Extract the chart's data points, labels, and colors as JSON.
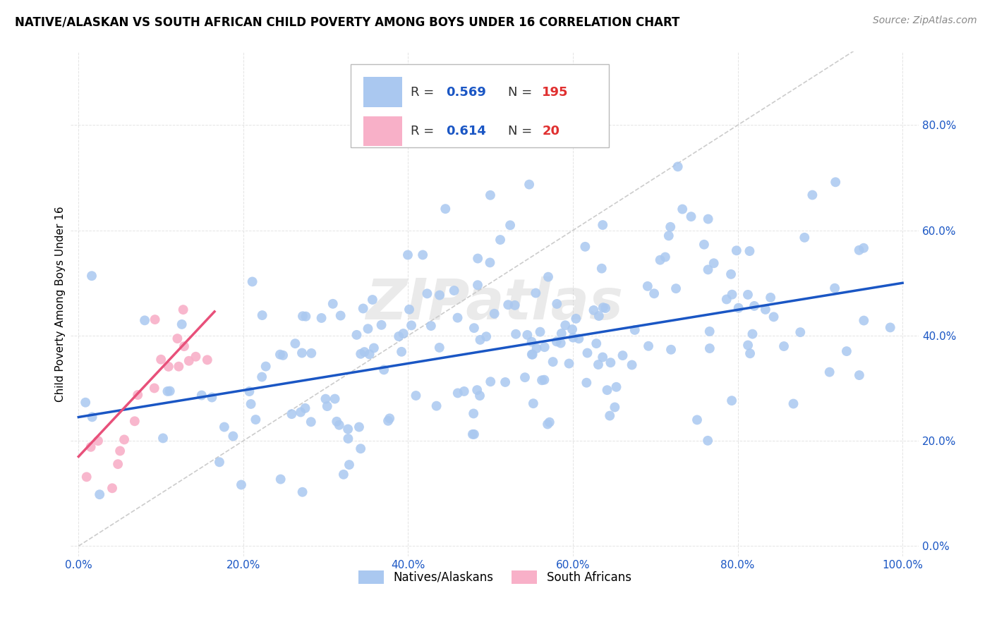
{
  "title": "NATIVE/ALASKAN VS SOUTH AFRICAN CHILD POVERTY AMONG BOYS UNDER 16 CORRELATION CHART",
  "source": "Source: ZipAtlas.com",
  "ylabel": "Child Poverty Among Boys Under 16",
  "blue_R": "0.569",
  "blue_N": "195",
  "pink_R": "0.614",
  "pink_N": "20",
  "blue_color": "#aac8f0",
  "blue_line_color": "#1a56c4",
  "pink_color": "#f8b0c8",
  "pink_line_color": "#e8507a",
  "dashed_line_color": "#cccccc",
  "watermark": "ZIPatlas",
  "tick_color": "#1a56c4",
  "legend_R_color": "#1a56c4",
  "legend_N_color": "#e03030",
  "legend_label_blue": "Natives/Alaskans",
  "legend_label_pink": "South Africans",
  "blue_seed": 42,
  "pink_seed": 77,
  "title_fontsize": 12,
  "source_fontsize": 10,
  "tick_fontsize": 11,
  "ylabel_fontsize": 11
}
